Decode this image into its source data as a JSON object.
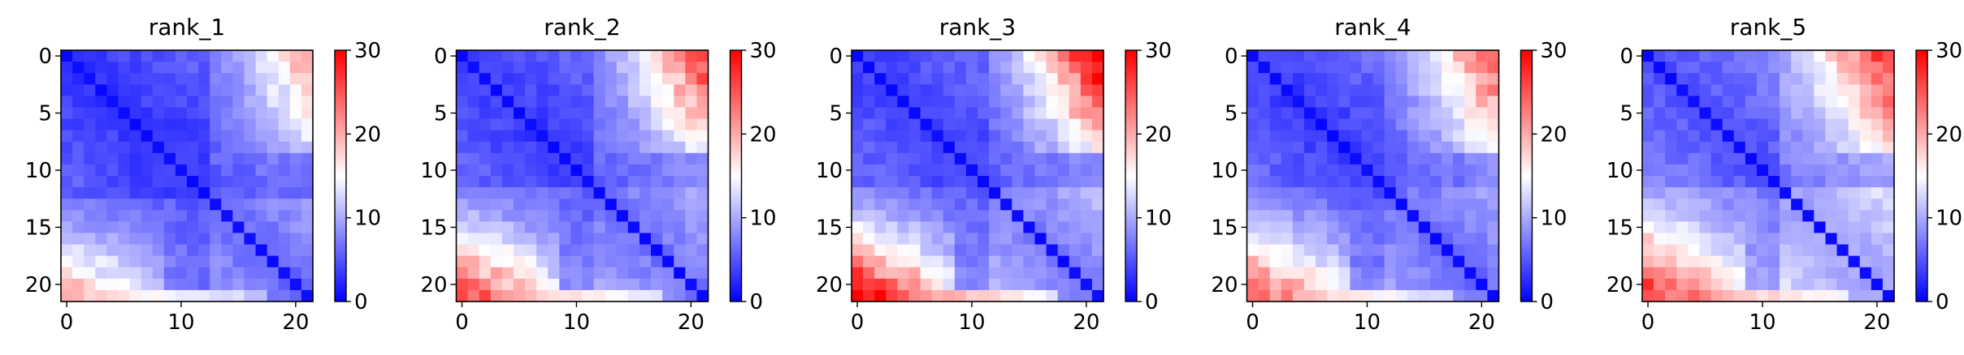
{
  "chart_data": [
    {
      "type": "heatmap",
      "title": "rank_1",
      "size": 22,
      "xticks": [
        0,
        10,
        20
      ],
      "yticks": [
        0,
        5,
        10,
        15,
        20
      ],
      "colorbar": {
        "min": 0,
        "max": 30,
        "ticks": [
          0,
          10,
          20,
          30
        ]
      },
      "colormap": "bwr",
      "params": {
        "lowBase": 3.0,
        "lowSlope": 0.23,
        "boundary": 13,
        "upBase": 6.0,
        "upSlope": 0.4,
        "topRight": 4,
        "topRightCells": 4,
        "crossDrop": 0.6,
        "bottomExtra": 8,
        "leftExtra": 3,
        "seed": 11
      }
    },
    {
      "type": "heatmap",
      "title": "rank_2",
      "size": 22,
      "xticks": [
        0,
        10,
        20
      ],
      "yticks": [
        0,
        5,
        10,
        15,
        20
      ],
      "colorbar": {
        "min": 0,
        "max": 30,
        "ticks": [
          0,
          10,
          20,
          30
        ]
      },
      "colormap": "bwr",
      "params": {
        "lowBase": 3.3,
        "lowSlope": 0.26,
        "boundary": 12,
        "upBase": 6.5,
        "upSlope": 0.42,
        "topRight": 6,
        "topRightCells": 4,
        "crossDrop": 0.6,
        "bottomExtra": 12,
        "leftExtra": 5,
        "seed": 23
      }
    },
    {
      "type": "heatmap",
      "title": "rank_3",
      "size": 22,
      "xticks": [
        0,
        10,
        20
      ],
      "yticks": [
        0,
        5,
        10,
        15,
        20
      ],
      "colorbar": {
        "min": 0,
        "max": 30,
        "ticks": [
          0,
          10,
          20,
          30
        ]
      },
      "colormap": "bwr",
      "params": {
        "lowBase": 3.5,
        "lowSlope": 0.26,
        "boundary": 12,
        "upBase": 7.0,
        "upSlope": 0.45,
        "topRight": 6,
        "topRightCells": 4,
        "crossDrop": 0.5,
        "bottomExtra": 14,
        "leftExtra": 7,
        "seed": 37
      }
    },
    {
      "type": "heatmap",
      "title": "rank_4",
      "size": 22,
      "xticks": [
        0,
        10,
        20
      ],
      "yticks": [
        0,
        5,
        10,
        15,
        20
      ],
      "colorbar": {
        "min": 0,
        "max": 30,
        "ticks": [
          0,
          10,
          20,
          30
        ]
      },
      "colormap": "bwr",
      "params": {
        "lowBase": 3.2,
        "lowSlope": 0.3,
        "boundary": 12,
        "upBase": 6.0,
        "upSlope": 0.45,
        "topRight": 8,
        "topRightCells": 4,
        "crossDrop": 0.55,
        "bottomExtra": 11,
        "leftExtra": 4,
        "seed": 51
      }
    },
    {
      "type": "heatmap",
      "title": "rank_5",
      "size": 22,
      "xticks": [
        0,
        10,
        20
      ],
      "yticks": [
        0,
        5,
        10,
        15,
        20
      ],
      "colorbar": {
        "min": 0,
        "max": 30,
        "ticks": [
          0,
          10,
          20,
          30
        ]
      },
      "colormap": "bwr",
      "params": {
        "lowBase": 4.5,
        "lowSlope": 0.32,
        "boundary": 12,
        "upBase": 9.0,
        "upSlope": 0.45,
        "topRight": 10,
        "topRightCells": 5,
        "crossDrop": 0.45,
        "bottomExtra": 9,
        "leftExtra": 6,
        "seed": 67
      }
    }
  ]
}
